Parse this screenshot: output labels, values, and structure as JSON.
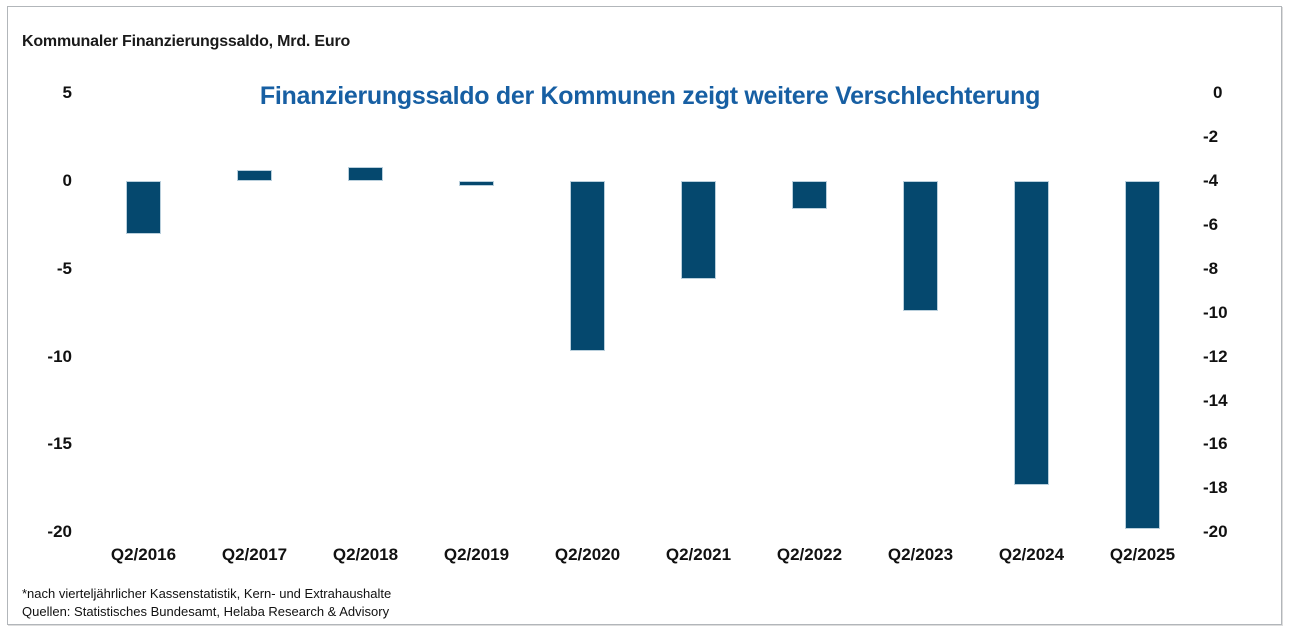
{
  "header": {
    "label": "Kommunaler Finanzierungssaldo, Mrd. Euro"
  },
  "chart_data": {
    "type": "bar",
    "title": "Finanzierungssaldo der Kommunen zeigt weitere Verschlechterung",
    "title_color": "#175fa3",
    "categories": [
      "Q2/2016",
      "Q2/2017",
      "Q2/2018",
      "Q2/2019",
      "Q2/2020",
      "Q2/2021",
      "Q2/2022",
      "Q2/2023",
      "Q2/2024",
      "Q2/2025"
    ],
    "values": [
      -3.0,
      0.6,
      0.8,
      -0.3,
      -9.7,
      -5.6,
      -1.6,
      -7.4,
      -17.3,
      -19.8
    ],
    "unit": "Mrd. Euro",
    "bar_color": "#05486e",
    "bar_border_color": "#b9cfdc",
    "left_axis": {
      "tick_labels": [
        "5",
        "0",
        "-5",
        "-10",
        "-15",
        "-20"
      ],
      "tick_values": [
        5,
        0,
        -5,
        -10,
        -15,
        -20
      ],
      "range": [
        5,
        -20
      ]
    },
    "right_axis": {
      "tick_labels": [
        "0",
        "-2",
        "-4",
        "-6",
        "-8",
        "-10",
        "-12",
        "-14",
        "-16",
        "-18",
        "-20"
      ],
      "range": [
        0,
        -20
      ]
    },
    "grid": false,
    "legend": false,
    "ylabel": "",
    "xlabel": ""
  },
  "footnotes": {
    "line1": "*nach vierteljährlicher Kassenstatistik, Kern- und Extrahaushalte",
    "line2": "Quellen: Statistisches Bundesamt, Helaba Research & Advisory"
  }
}
